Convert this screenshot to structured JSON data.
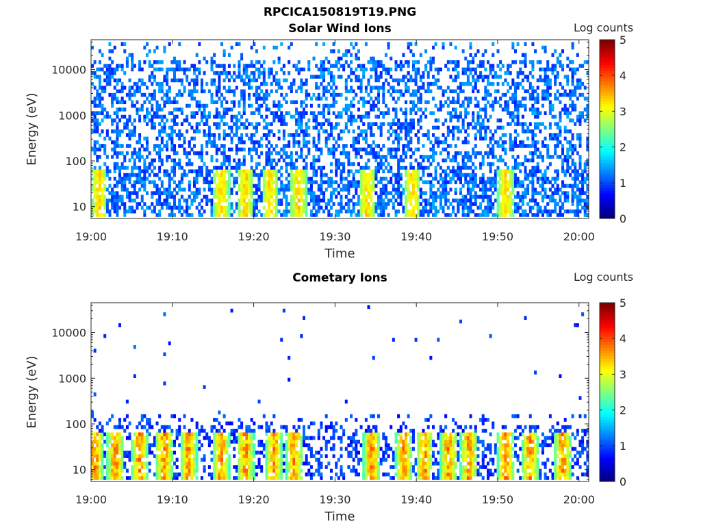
{
  "figure": {
    "title": "RPCICA150819T19.PNG"
  },
  "colormap": "jet",
  "chart_data": [
    {
      "type": "heatmap",
      "title": "Solar Wind Ions",
      "xlabel": "Time",
      "ylabel": "Energy (eV)",
      "x_ticks": [
        "19:00",
        "19:10",
        "19:20",
        "19:30",
        "19:40",
        "19:50",
        "20:00"
      ],
      "y_ticks": [
        "10",
        "100",
        "1000",
        "10000"
      ],
      "y_scale": "log",
      "ylim": [
        5.5,
        45000
      ],
      "xlim": [
        "19:00",
        "20:01"
      ],
      "colorbar": {
        "label": "Log counts",
        "ticks": [
          "0",
          "1",
          "2",
          "3",
          "4",
          "5"
        ],
        "range": [
          0,
          5
        ]
      },
      "hotspots_time_min": [
        1,
        16,
        19,
        22,
        25.5,
        34,
        39.5,
        51
      ],
      "peak_log_counts": 3.0
    },
    {
      "type": "heatmap",
      "title": "Cometary Ions",
      "xlabel": "Time",
      "ylabel": "Energy (eV)",
      "x_ticks": [
        "19:00",
        "19:10",
        "19:20",
        "19:30",
        "19:40",
        "19:50",
        "20:00"
      ],
      "y_ticks": [
        "10",
        "100",
        "1000",
        "10000"
      ],
      "y_scale": "log",
      "ylim": [
        5.5,
        45000
      ],
      "xlim": [
        "19:00",
        "20:01"
      ],
      "colorbar": {
        "label": "Log counts",
        "ticks": [
          "0",
          "1",
          "2",
          "3",
          "4",
          "5"
        ],
        "range": [
          0,
          5
        ]
      },
      "hotspots_time_min": [
        0.5,
        3,
        6,
        9,
        12,
        16,
        19,
        22.5,
        25,
        34.5,
        38.5,
        41,
        44,
        46.5,
        51,
        54,
        58
      ],
      "peak_log_counts": 3.8
    }
  ]
}
